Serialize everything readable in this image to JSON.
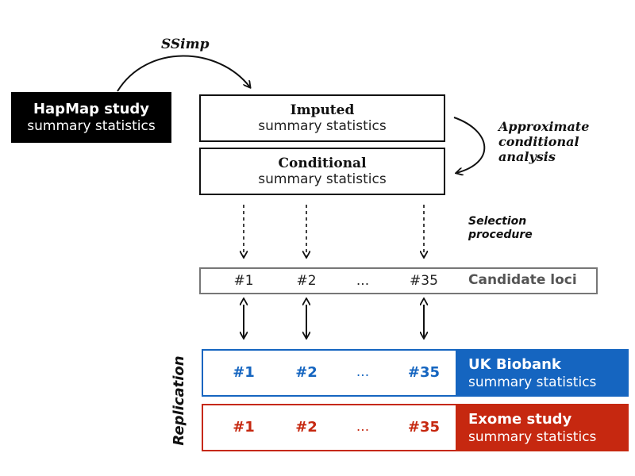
{
  "hapmap": {
    "title": "HapMap study",
    "subtitle": "summary statistics"
  },
  "ssimp": "SSimp",
  "imputed": {
    "title": "Imputed",
    "subtitle": "summary statistics"
  },
  "conditional": {
    "title": "Conditional",
    "subtitle": "summary statistics"
  },
  "approx": {
    "line1": "Approximate",
    "line2": "conditional",
    "line3": "analysis"
  },
  "selection": {
    "line1": "Selection",
    "line2": "procedure"
  },
  "candidate": {
    "items": [
      "#1",
      "#2",
      "...",
      "#35"
    ],
    "label": "Candidate loci"
  },
  "replication": "Replication",
  "ukbiobank": {
    "items": [
      "#1",
      "#2",
      "...",
      "#35"
    ],
    "title": "UK Biobank",
    "subtitle": "summary statistics"
  },
  "exome": {
    "items": [
      "#1",
      "#2",
      "...",
      "#35"
    ],
    "title": "Exome study",
    "subtitle": "summary statistics"
  },
  "colors": {
    "black": "#000000",
    "blue": "#1565c0",
    "red": "#c62810",
    "gray": "#555555"
  }
}
